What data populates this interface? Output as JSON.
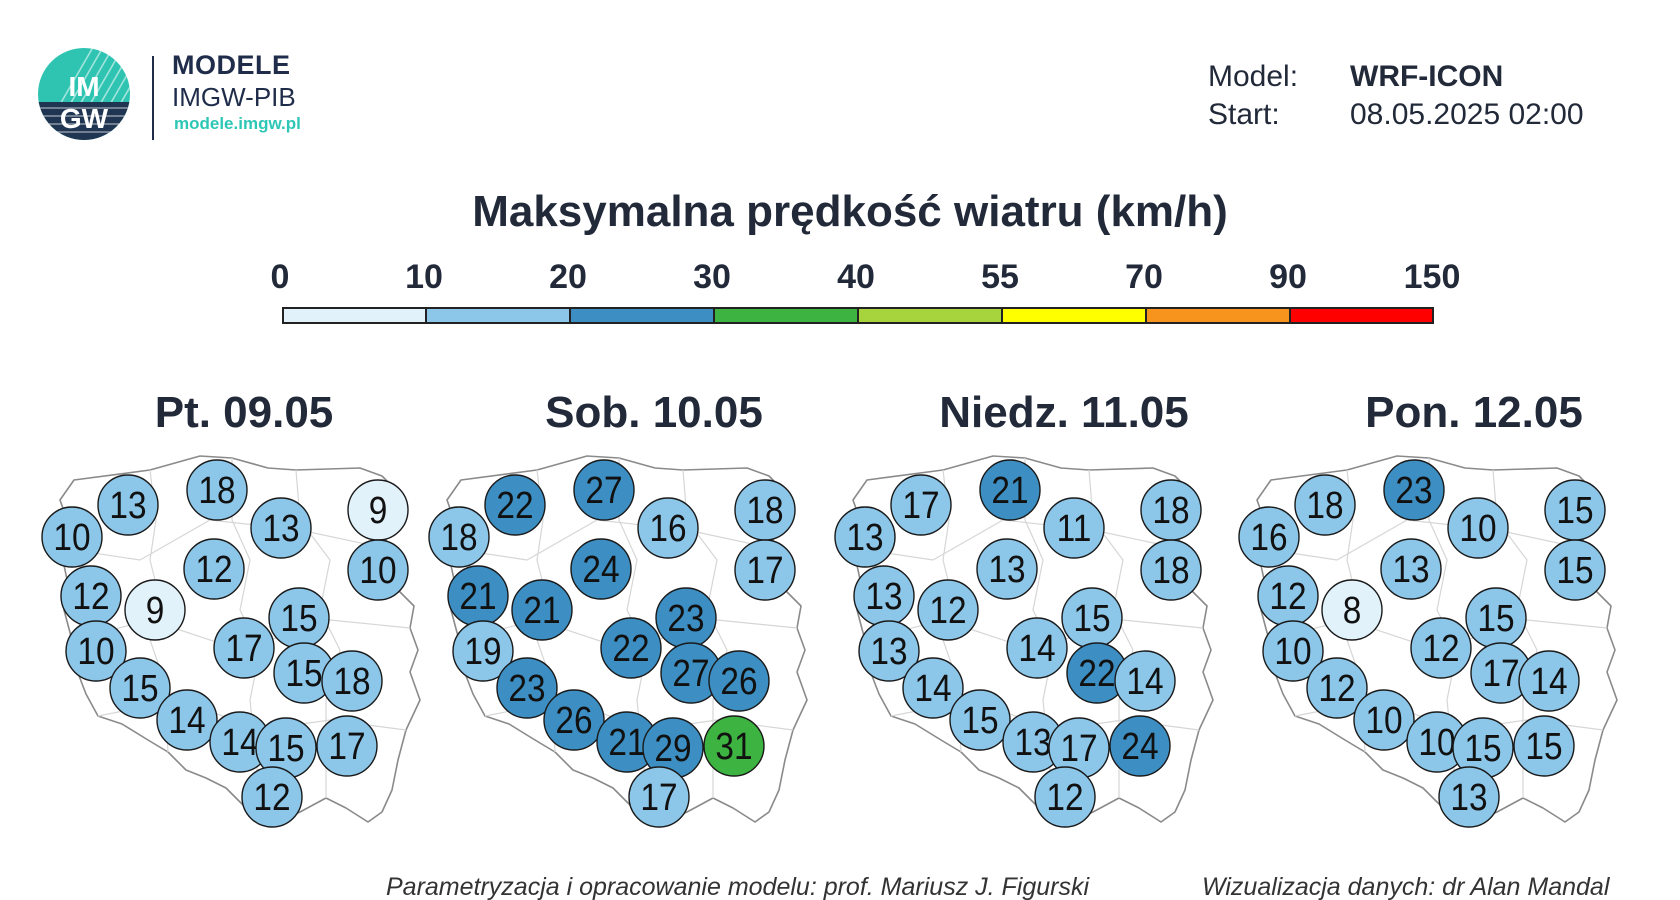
{
  "header": {
    "logo": {
      "line1": "IM",
      "line2": "GW"
    },
    "brand_name": "MODELE",
    "brand_sub": "IMGW-PIB",
    "brand_url": "modele.imgw.pl",
    "model_label": "Model:",
    "model_value": "WRF-ICON",
    "start_label": "Start:",
    "start_value": "08.05.2025 02:00"
  },
  "title": "Maksymalna prędkość wiatru (km/h)",
  "scale": {
    "labels": [
      "0",
      "10",
      "20",
      "30",
      "40",
      "55",
      "70",
      "90",
      "150"
    ],
    "colors": [
      "#e2f2fb",
      "#8cc7ea",
      "#3d8fc3",
      "#3db441",
      "#a7d43d",
      "#ffff00",
      "#f7941e",
      "#ff0000"
    ]
  },
  "days": [
    {
      "title": "Pt. 09.05",
      "values": [
        "13",
        "18",
        "10",
        "13",
        "9",
        "10",
        "12",
        "12",
        "9",
        "15",
        "10",
        "17",
        "15",
        "18",
        "15",
        "14",
        "14",
        "15",
        "17",
        "12"
      ]
    },
    {
      "title": "Sob. 10.05",
      "values": [
        "22",
        "27",
        "18",
        "16",
        "18",
        "17",
        "21",
        "24",
        "21",
        "23",
        "19",
        "22",
        "27",
        "26",
        "23",
        "26",
        "21",
        "29",
        "31",
        "17"
      ]
    },
    {
      "title": "Niedz. 11.05",
      "values": [
        "17",
        "21",
        "13",
        "11",
        "18",
        "18",
        "13",
        "13",
        "12",
        "15",
        "13",
        "14",
        "22",
        "14",
        "14",
        "15",
        "13",
        "17",
        "24",
        "12"
      ]
    },
    {
      "title": "Pon. 12.05",
      "values": [
        "18",
        "23",
        "16",
        "10",
        "15",
        "15",
        "12",
        "13",
        "8",
        "15",
        "10",
        "12",
        "17",
        "14",
        "12",
        "10",
        "10",
        "15",
        "15",
        "13"
      ]
    }
  ],
  "footer": {
    "left": "Parametryzacja i opracowanie modelu: prof. Mariusz J. Figurski",
    "right": "Wizualizacja danych: dr Alan Mandal"
  }
}
